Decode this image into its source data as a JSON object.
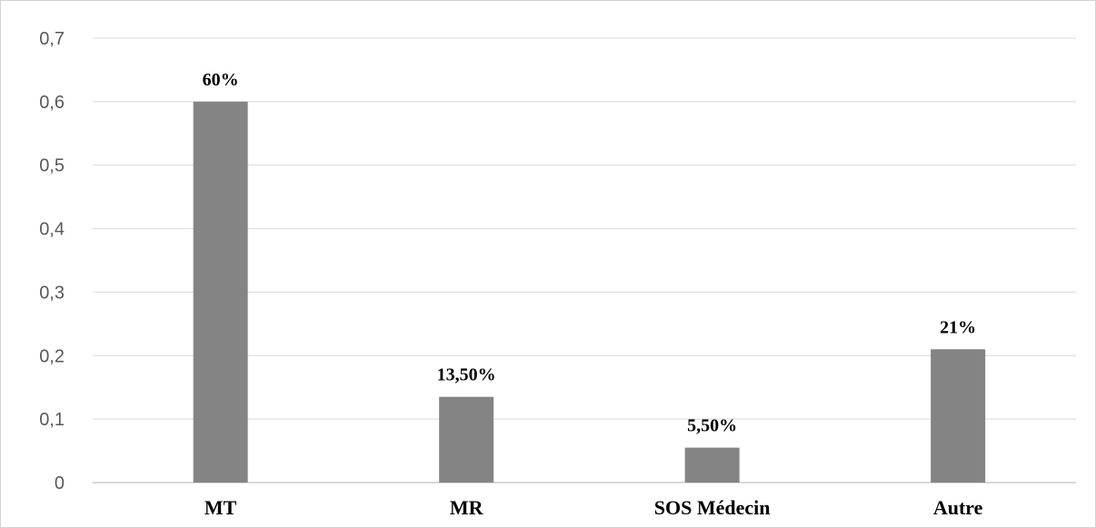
{
  "chart_data": {
    "type": "bar",
    "categories": [
      "MT",
      "MR",
      "SOS Médecin",
      "Autre"
    ],
    "values": [
      0.6,
      0.135,
      0.055,
      0.21
    ],
    "data_labels": [
      "60%",
      "13,50%",
      "5,50%",
      "21%"
    ],
    "ylim": [
      0,
      0.7
    ],
    "yticks": [
      0,
      0.1,
      0.2,
      0.3,
      0.4,
      0.5,
      0.6,
      0.7
    ],
    "ytick_labels": [
      "0",
      "0,1",
      "0,2",
      "0,3",
      "0,4",
      "0,5",
      "0,6",
      "0,7"
    ],
    "grid": true,
    "legend": "none",
    "title": "",
    "xlabel": "",
    "ylabel": "",
    "bar_color": "#848484",
    "grid_color": "#d9d9d9"
  }
}
